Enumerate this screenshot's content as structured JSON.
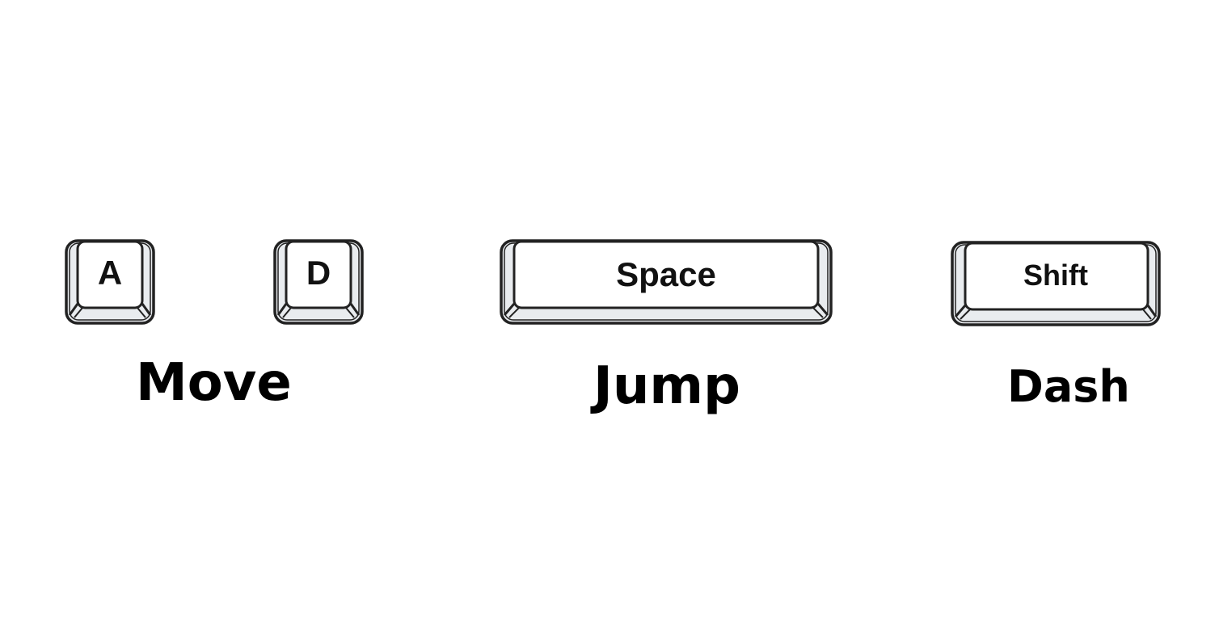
{
  "controls": {
    "move": {
      "label": "Move",
      "keys": [
        "A",
        "D"
      ]
    },
    "jump": {
      "label": "Jump",
      "key": "Space"
    },
    "dash": {
      "label": "Dash",
      "key": "Shift"
    }
  },
  "colors": {
    "key_outline": "#222222",
    "key_face": "#ffffff",
    "key_base": "#e9ecef",
    "text": "#000000"
  }
}
